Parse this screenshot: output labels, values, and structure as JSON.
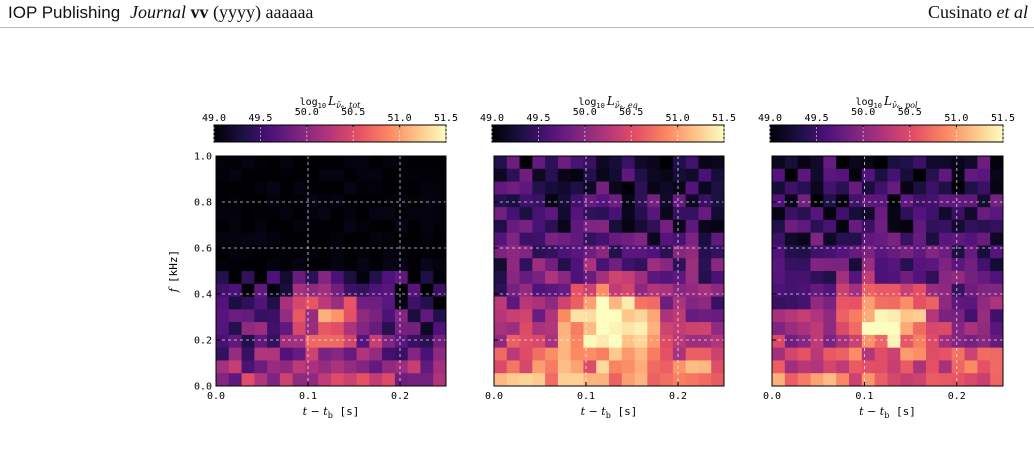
{
  "header": {
    "publisher": "IOP Publishing",
    "journal_name": "Journal",
    "journal_volume": "vv",
    "journal_rest": "(yyyy) aaaaaa",
    "author_lead": "Cusinato",
    "author_etal": "et al"
  },
  "figure": {
    "colormap": "magma",
    "colormap_stops": [
      "#000004",
      "#1c1044",
      "#4f127b",
      "#812581",
      "#b5367a",
      "#e55064",
      "#fb8761",
      "#fec287",
      "#fcfdbf"
    ],
    "ylabel_var": "f",
    "ylabel_unit": "[kHz]",
    "panels": [
      {
        "cbar_prefix": "log",
        "cbar_sub10": "10",
        "cbar_var": "L",
        "cbar_sub": "ν̄ₑ, tot",
        "intensity": 0.55
      },
      {
        "cbar_prefix": "log",
        "cbar_sub10": "10",
        "cbar_var": "L",
        "cbar_sub": "ν̄ₑ, eq",
        "intensity": 0.85
      },
      {
        "cbar_prefix": "log",
        "cbar_sub10": "10",
        "cbar_var": "L",
        "cbar_sub": "ν̄ₑ, pol",
        "intensity": 0.7
      }
    ]
  },
  "chart_data": {
    "type": "heatmap",
    "xlabel": "t − t_b [s]",
    "ylabel": "f [kHz]",
    "x_ticks": [
      "0.0",
      "0.1",
      "0.2"
    ],
    "y_ticks": [
      "0.0",
      "0.2",
      "0.4",
      "0.6",
      "0.8",
      "1.0"
    ],
    "xlim": [
      0.0,
      0.25
    ],
    "ylim": [
      0.0,
      1.0
    ],
    "colorbar_ticks": [
      "49.0",
      "49.5",
      "50.0",
      "50.5",
      "51.0",
      "51.5"
    ],
    "colorbar_range": [
      49.0,
      51.5
    ],
    "grid": true,
    "panels": [
      "tot",
      "eq",
      "pol"
    ]
  }
}
